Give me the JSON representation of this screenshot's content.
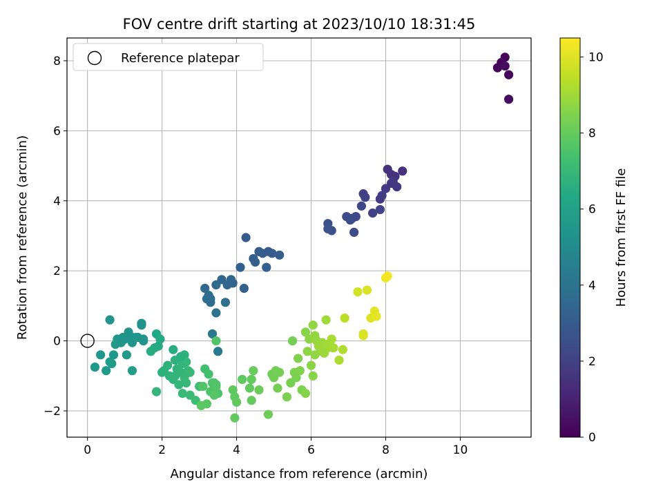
{
  "chart_data": {
    "type": "scatter",
    "title": "FOV centre drift starting at 2023/10/10 18:31:45",
    "xlabel": "Angular distance from reference (arcmin)",
    "ylabel": "Rotation from reference (arcmin)",
    "xlim": [
      -0.55,
      11.9
    ],
    "ylim": [
      -2.75,
      8.65
    ],
    "x_ticks": [
      0,
      2,
      4,
      6,
      8,
      10
    ],
    "y_ticks": [
      -2,
      0,
      2,
      4,
      6,
      8
    ],
    "x_tick_labels": [
      "0",
      "2",
      "4",
      "6",
      "8",
      "10"
    ],
    "y_tick_labels": [
      "−2",
      "0",
      "2",
      "4",
      "6",
      "8"
    ],
    "grid": true,
    "legend": {
      "placement": "top-left",
      "entries": [
        "Reference platepar"
      ]
    },
    "reference_point": {
      "x": 0,
      "y": 0,
      "label": "Reference platepar"
    },
    "colorbar": {
      "label": "Hours from first FF file",
      "range": [
        0,
        10.5
      ],
      "ticks": [
        0,
        2,
        4,
        6,
        8,
        10
      ],
      "tick_labels": [
        "0",
        "2",
        "4",
        "6",
        "8",
        "10"
      ],
      "colormap": "viridis"
    },
    "series": [
      {
        "x": [
          11.0,
          11.1,
          11.2,
          11.3,
          11.2,
          11.3
        ],
        "y": [
          7.8,
          7.95,
          8.1,
          7.6,
          7.85,
          6.9
        ],
        "hours": [
          0.1,
          0.15,
          0.2,
          0.25,
          0.3,
          0.35
        ]
      },
      {
        "x": [
          8.05,
          8.15,
          8.25,
          8.45,
          8.15,
          8.3,
          8.0,
          8.2,
          7.9,
          7.85,
          7.65,
          7.4,
          7.45,
          7.85,
          7.35,
          7.2,
          7.1,
          6.95,
          7.15,
          7.05,
          6.45,
          6.55,
          6.45
        ],
        "y": [
          4.9,
          4.75,
          4.7,
          4.85,
          4.5,
          4.4,
          4.35,
          4.55,
          4.15,
          4.05,
          3.65,
          4.2,
          4.1,
          3.75,
          3.85,
          3.55,
          3.5,
          3.55,
          3.1,
          3.45,
          3.35,
          3.15,
          3.2
        ],
        "hours": [
          1.5,
          1.6,
          1.55,
          1.5,
          1.7,
          1.65,
          1.8,
          1.75,
          1.9,
          1.85,
          2.0,
          1.95,
          2.05,
          2.1,
          2.2,
          2.25,
          2.3,
          2.35,
          2.4,
          2.45,
          2.6,
          2.55,
          2.65
        ]
      },
      {
        "x": [
          3.15,
          3.25,
          3.3,
          3.45,
          3.6,
          3.75,
          3.85,
          3.9,
          4.1,
          4.2,
          4.25,
          4.45,
          4.5,
          4.6,
          4.7,
          4.85,
          4.8,
          4.95,
          5.15,
          3.2,
          3.3,
          3.45,
          3.7,
          3.35,
          3.5
        ],
        "y": [
          1.5,
          1.3,
          1.1,
          1.6,
          1.75,
          1.6,
          1.75,
          1.65,
          2.1,
          1.5,
          2.95,
          2.35,
          2.25,
          2.55,
          2.5,
          2.55,
          2.1,
          2.5,
          2.45,
          1.2,
          1.2,
          0.8,
          1.1,
          0.2,
          -0.3
        ],
        "hours": [
          3.6,
          3.7,
          3.75,
          3.6,
          3.5,
          3.45,
          3.4,
          3.35,
          3.2,
          3.3,
          3.0,
          3.1,
          3.15,
          3.05,
          3.1,
          3.0,
          3.2,
          3.05,
          3.1,
          3.8,
          3.7,
          3.9,
          3.85,
          4.2,
          4.3
        ]
      },
      {
        "x": [
          0.6,
          0.2,
          0.35,
          0.5,
          0.65,
          0.7,
          0.8,
          0.9,
          1.0,
          1.1,
          1.2,
          1.35,
          1.45,
          1.5,
          1.2,
          1.05,
          1.3,
          1.45,
          1.5,
          0.75,
          0.6,
          1.2,
          1.85,
          1.95,
          1.7,
          1.8,
          1.9,
          0.95
        ],
        "y": [
          0.6,
          -0.75,
          -0.4,
          -0.85,
          -0.65,
          -0.4,
          0.05,
          -0.05,
          0.05,
          0.25,
          -0.05,
          0.1,
          0.5,
          0.0,
          0.1,
          -0.4,
          0.1,
          0.45,
          0.05,
          -0.1,
          -0.6,
          -0.85,
          0.2,
          0.05,
          -0.3,
          -0.2,
          -0.15,
          0.1
        ],
        "hours": [
          5.4,
          5.6,
          5.5,
          5.7,
          5.65,
          5.55,
          5.5,
          5.45,
          5.4,
          5.35,
          5.5,
          5.45,
          5.3,
          5.4,
          5.45,
          5.6,
          5.5,
          5.35,
          5.4,
          5.6,
          5.75,
          5.8,
          6.3,
          6.4,
          6.5,
          6.45,
          6.35,
          5.45
        ]
      },
      {
        "x": [
          2.05,
          2.15,
          2.3,
          2.35,
          2.4,
          2.5,
          2.55,
          2.6,
          2.65,
          2.7,
          2.75,
          2.2,
          2.3,
          2.45,
          2.55,
          2.6,
          2.75,
          2.9,
          3.0,
          3.15,
          3.25,
          3.35,
          3.4,
          3.45,
          3.5,
          2.65,
          2.5,
          2.35,
          2.0,
          1.85
        ],
        "y": [
          -0.85,
          -0.7,
          -0.25,
          -0.55,
          -0.8,
          -0.9,
          -0.65,
          -0.4,
          -0.6,
          -0.85,
          -0.9,
          -1.0,
          -1.1,
          -1.25,
          -1.5,
          -1.05,
          -1.55,
          -1.7,
          -1.3,
          -0.8,
          -0.95,
          -1.2,
          -1.35,
          -1.25,
          -1.5,
          -1.2,
          -0.45,
          -1.0,
          -0.9,
          -1.45
        ],
        "hours": [
          6.6,
          6.7,
          6.5,
          6.65,
          6.75,
          6.8,
          6.85,
          6.7,
          6.9,
          6.95,
          7.0,
          6.75,
          6.8,
          6.9,
          7.05,
          6.95,
          7.1,
          7.2,
          7.25,
          7.3,
          7.35,
          7.4,
          7.45,
          7.5,
          7.55,
          7.0,
          6.6,
          6.85,
          6.7,
          6.9
        ]
      },
      {
        "x": [
          3.1,
          3.3,
          3.4,
          3.45,
          3.4,
          3.2,
          3.05,
          3.9,
          3.95,
          4.0,
          4.15,
          4.4,
          4.35,
          4.45,
          4.6,
          4.4,
          3.95,
          4.85,
          4.95,
          5.05,
          5.15,
          5.0,
          5.1,
          5.35,
          5.45,
          5.55,
          5.6,
          5.7,
          5.75,
          5.85,
          5.65,
          5.5,
          3.45
        ],
        "y": [
          -1.3,
          -1.45,
          -1.55,
          -1.3,
          -1.2,
          -1.8,
          -1.85,
          -1.4,
          -1.6,
          -1.75,
          -1.1,
          -1.1,
          -1.35,
          -0.85,
          -1.4,
          -1.7,
          -2.2,
          -2.1,
          -0.95,
          -0.85,
          -0.9,
          -1.05,
          -1.35,
          -1.6,
          -1.2,
          -0.9,
          -1.05,
          -0.85,
          -1.4,
          -1.5,
          -0.5,
          0.0,
          0.0
        ],
        "hours": [
          7.6,
          7.55,
          7.7,
          7.65,
          7.6,
          7.75,
          7.8,
          7.85,
          7.9,
          7.95,
          7.9,
          8.0,
          7.95,
          8.05,
          8.1,
          8.0,
          7.95,
          8.15,
          8.2,
          8.25,
          8.3,
          8.2,
          8.25,
          8.4,
          8.35,
          8.45,
          8.4,
          8.5,
          8.45,
          8.55,
          8.5,
          8.3,
          7.6
        ]
      },
      {
        "x": [
          5.85,
          5.95,
          6.05,
          6.1,
          6.15,
          6.2,
          6.25,
          6.3,
          6.35,
          6.4,
          6.45,
          6.5,
          6.55,
          6.0,
          5.9,
          6.05,
          6.1,
          6.3,
          6.4,
          6.6,
          6.75,
          6.85,
          6.9,
          7.25,
          7.5,
          7.4,
          7.6,
          7.7,
          7.75,
          7.4,
          8.0,
          8.05
        ],
        "y": [
          0.25,
          0.05,
          0.45,
          0.15,
          0.0,
          -0.15,
          -0.3,
          -0.05,
          -0.35,
          0.6,
          -0.2,
          -0.1,
          0.05,
          -0.7,
          -0.3,
          -1.0,
          -0.4,
          -0.25,
          -0.1,
          -0.2,
          -0.55,
          -0.25,
          0.65,
          1.4,
          1.45,
          0.2,
          0.65,
          0.85,
          0.7,
          0.15,
          1.8,
          1.85
        ],
        "hours": [
          8.6,
          8.7,
          8.75,
          8.8,
          8.85,
          8.9,
          8.85,
          8.9,
          8.95,
          9.0,
          9.05,
          9.1,
          9.15,
          8.65,
          8.7,
          8.6,
          8.75,
          8.95,
          9.0,
          9.1,
          9.2,
          9.25,
          9.4,
          9.8,
          9.9,
          9.85,
          10.0,
          10.05,
          10.1,
          9.95,
          10.3,
          10.35
        ]
      }
    ]
  }
}
